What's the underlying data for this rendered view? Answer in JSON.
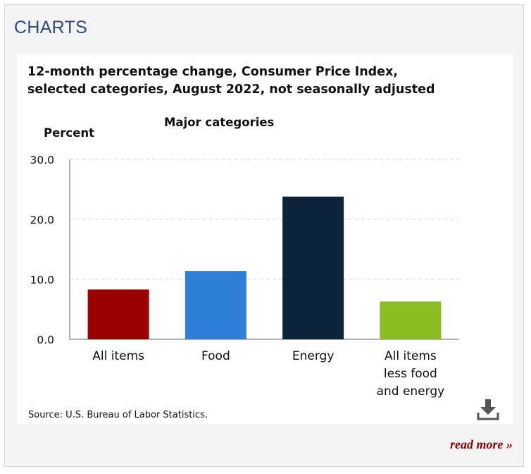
{
  "section": {
    "title": "CHARTS"
  },
  "card": {
    "title_lines": [
      "12-month percentage change, Consumer Price Index,",
      "selected categories, August 2022, not seasonally adjusted"
    ],
    "source": "Source: U.S. Bureau of Labor Statistics.",
    "download_icon": "download-icon",
    "read_more": "read more »"
  },
  "chart_data": {
    "type": "bar",
    "title": "Major categories",
    "ylabel": "Percent",
    "xlabel": "",
    "ylim": [
      0,
      30
    ],
    "yticks": [
      0,
      10,
      20,
      30
    ],
    "ytick_labels": [
      "0.0",
      "10.0",
      "20.0",
      "30.0"
    ],
    "grid": true,
    "categories": [
      [
        "All items"
      ],
      [
        "Food"
      ],
      [
        "Energy"
      ],
      [
        "All items",
        "less food",
        "and energy"
      ]
    ],
    "values": [
      8.3,
      11.4,
      23.8,
      6.3
    ],
    "colors": [
      "#990000",
      "#2f7ed8",
      "#0d233a",
      "#8bbc21"
    ]
  }
}
